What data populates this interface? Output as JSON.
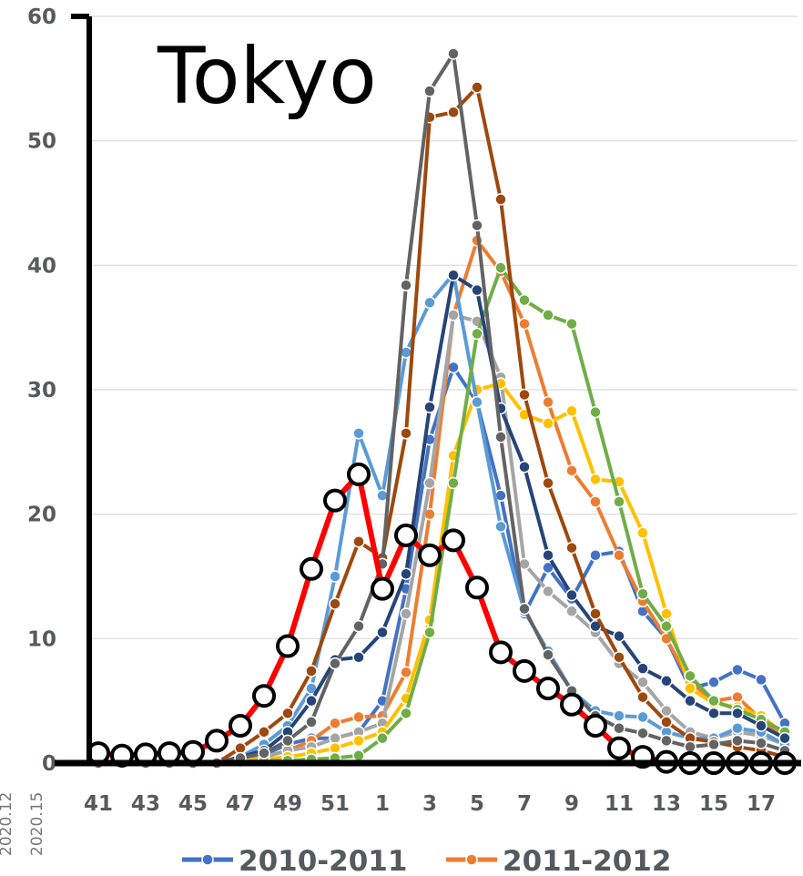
{
  "chart_data": {
    "type": "line",
    "title": "Tokyo",
    "xlabel": "",
    "ylabel": "",
    "ylim": [
      0,
      60
    ],
    "yticks": [
      0,
      10,
      20,
      30,
      40,
      50,
      60
    ],
    "x_categories": [
      41,
      42,
      43,
      44,
      45,
      46,
      47,
      48,
      49,
      50,
      51,
      52,
      1,
      2,
      3,
      4,
      5,
      6,
      7,
      8,
      9,
      10,
      11,
      12,
      13,
      14,
      15,
      16,
      17,
      18
    ],
    "x_tick_labels": [
      "41",
      "43",
      "45",
      "47",
      "49",
      "51",
      "1",
      "3",
      "5",
      "7",
      "9",
      "11",
      "13",
      "15",
      "17"
    ],
    "grid": true,
    "legend_position": "bottom",
    "legend": [
      "2010-2011",
      "2011-2012"
    ],
    "side_labels": [
      "2020.12",
      "2020.15"
    ],
    "series": [
      {
        "name": "2010-2011",
        "color": "#4472c4",
        "values": [
          0,
          0,
          0,
          0,
          0,
          0,
          0.3,
          0.7,
          1.5,
          2,
          2,
          2.5,
          5,
          14,
          26,
          31.8,
          29,
          21.5,
          12,
          15.7,
          13.2,
          16.7,
          17,
          12.2,
          10,
          6,
          6.5,
          7.5,
          6.7,
          3.2
        ]
      },
      {
        "name": "2011-2012",
        "color": "#ed7d31",
        "values": [
          0,
          0,
          0,
          0,
          0,
          0,
          0.3,
          0.5,
          1,
          1.8,
          3.2,
          3.7,
          3.8,
          7.3,
          20,
          36,
          42,
          39.5,
          35.3,
          29,
          23.5,
          21,
          16.7,
          13,
          10,
          6.5,
          5,
          5.3,
          3.5,
          2
        ]
      },
      {
        "color": "#a5a5a5",
        "values": [
          0,
          0,
          0,
          0,
          0,
          0,
          0.3,
          0.5,
          1,
          1.3,
          2,
          2.5,
          3.2,
          12,
          22.5,
          36,
          35.5,
          31,
          16,
          13.8,
          12.2,
          10.5,
          8,
          6.5,
          4.2,
          2.5,
          2,
          2.5,
          2.2,
          1.5
        ]
      },
      {
        "color": "#ffc000",
        "values": [
          0,
          0,
          0,
          0,
          0,
          0,
          0.2,
          0.3,
          0.5,
          0.8,
          1.2,
          1.8,
          2.5,
          5.2,
          11.5,
          24.7,
          30,
          30.5,
          28,
          27.3,
          28.3,
          22.8,
          22.6,
          18.5,
          12,
          6,
          4.8,
          4.5,
          3.8,
          2.3
        ]
      },
      {
        "color": "#5b9bd5",
        "values": [
          0,
          0,
          0,
          0,
          0,
          0,
          0.5,
          1.5,
          3,
          6,
          15,
          26.5,
          21.5,
          33,
          37,
          39.3,
          29,
          19,
          12.2,
          9,
          5.8,
          4.2,
          3.8,
          3.7,
          2.5,
          2,
          2,
          2.8,
          2.5,
          1.5
        ]
      },
      {
        "color": "#70ad47",
        "values": [
          0,
          0,
          0,
          0,
          0,
          0,
          0.1,
          0.2,
          0.2,
          0.3,
          0.4,
          0.6,
          2,
          4,
          10.5,
          22.5,
          34.5,
          39.8,
          37.2,
          36,
          35.3,
          28.2,
          21,
          13.6,
          11,
          7,
          5,
          4.3,
          3.5,
          2.5
        ]
      },
      {
        "color": "#264478",
        "values": [
          0,
          0,
          0,
          0,
          0,
          0,
          0.5,
          1,
          2.5,
          5,
          8.3,
          8.5,
          10.5,
          15.2,
          28.6,
          39.2,
          38,
          28.5,
          23.8,
          16.7,
          13.5,
          11,
          10.2,
          7.6,
          6.6,
          5,
          4,
          4,
          3,
          2
        ]
      },
      {
        "color": "#9e480e",
        "values": [
          0,
          0,
          0,
          0,
          0,
          0,
          1.2,
          2.5,
          4,
          7.4,
          12.8,
          17.8,
          16.5,
          26.5,
          51.9,
          52.3,
          54.3,
          45.3,
          29.6,
          22.5,
          17.3,
          12,
          8.5,
          5.3,
          3.3,
          2,
          1.7,
          1.3,
          1,
          0.5
        ]
      },
      {
        "color": "#636363",
        "values": [
          0,
          0,
          0,
          0,
          0,
          0,
          0.4,
          0.8,
          1.8,
          3.3,
          8,
          11,
          16,
          38.4,
          54,
          57,
          43.2,
          26.2,
          12.4,
          8.7,
          5.8,
          3.8,
          2.8,
          2.4,
          1.8,
          1.3,
          1.5,
          1.8,
          1.6,
          1
        ]
      },
      {
        "color": "#ff0000",
        "marker": "open-circle",
        "values": [
          0.8,
          0.6,
          0.7,
          0.8,
          0.9,
          1.8,
          3,
          5.4,
          9.4,
          15.6,
          21.1,
          23.2,
          14,
          18.3,
          16.7,
          17.9,
          14.1,
          8.9,
          7.4,
          6,
          4.7,
          3,
          1.2,
          0.5,
          0.1,
          0,
          0,
          0,
          0,
          0
        ]
      }
    ]
  }
}
